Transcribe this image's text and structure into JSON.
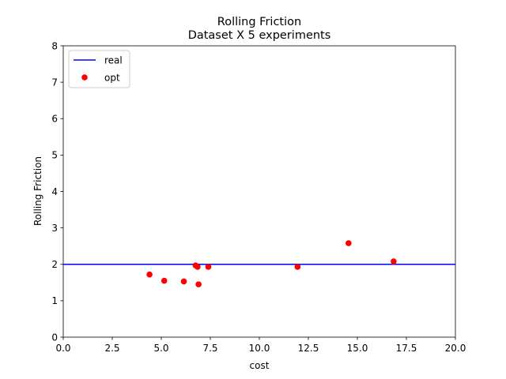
{
  "chart_data": {
    "type": "scatter",
    "title": "Rolling Friction",
    "subtitle": "Dataset X 5 experiments",
    "xlabel": "cost",
    "ylabel": "Rolling Friction",
    "xlim": [
      0,
      20
    ],
    "ylim": [
      0,
      8
    ],
    "xticks": [
      "0.0",
      "2.5",
      "5.0",
      "7.5",
      "10.0",
      "12.5",
      "15.0",
      "17.5",
      "20.0"
    ],
    "yticks": [
      "0",
      "1",
      "2",
      "3",
      "4",
      "5",
      "6",
      "7",
      "8"
    ],
    "grid": false,
    "legend_position": "top-left",
    "series": [
      {
        "name": "real",
        "kind": "hline",
        "y": 2.0,
        "color": "#0000ff"
      },
      {
        "name": "opt",
        "kind": "scatter",
        "color": "#ff0000",
        "points": [
          {
            "x": 4.4,
            "y": 1.72
          },
          {
            "x": 5.15,
            "y": 1.55
          },
          {
            "x": 6.15,
            "y": 1.53
          },
          {
            "x": 6.75,
            "y": 1.97
          },
          {
            "x": 6.85,
            "y": 1.93
          },
          {
            "x": 6.9,
            "y": 1.45
          },
          {
            "x": 7.4,
            "y": 1.93
          },
          {
            "x": 11.95,
            "y": 1.93
          },
          {
            "x": 14.55,
            "y": 2.58
          },
          {
            "x": 16.85,
            "y": 2.08
          }
        ]
      }
    ]
  }
}
